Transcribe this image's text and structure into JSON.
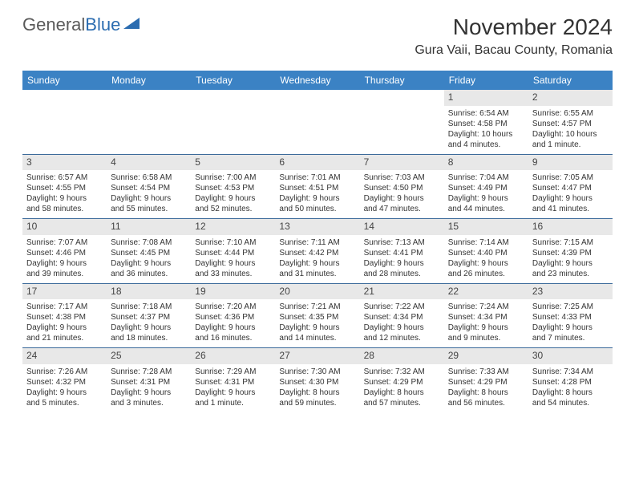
{
  "logo": {
    "text_dark": "General",
    "text_blue": "Blue"
  },
  "title": "November 2024",
  "location": "Gura Vaii, Bacau County, Romania",
  "colors": {
    "header_bg": "#3b82c4",
    "header_text": "#ffffff",
    "border": "#3b6a9a",
    "daynum_bg": "#e8e8e8",
    "text": "#333333",
    "logo_dark": "#5a5a5a",
    "logo_blue": "#2b6cb0"
  },
  "day_headers": [
    "Sunday",
    "Monday",
    "Tuesday",
    "Wednesday",
    "Thursday",
    "Friday",
    "Saturday"
  ],
  "weeks": [
    [
      {
        "empty": true
      },
      {
        "empty": true
      },
      {
        "empty": true
      },
      {
        "empty": true
      },
      {
        "empty": true
      },
      {
        "day": "1",
        "sunrise": "Sunrise: 6:54 AM",
        "sunset": "Sunset: 4:58 PM",
        "daylight1": "Daylight: 10 hours",
        "daylight2": "and 4 minutes."
      },
      {
        "day": "2",
        "sunrise": "Sunrise: 6:55 AM",
        "sunset": "Sunset: 4:57 PM",
        "daylight1": "Daylight: 10 hours",
        "daylight2": "and 1 minute."
      }
    ],
    [
      {
        "day": "3",
        "sunrise": "Sunrise: 6:57 AM",
        "sunset": "Sunset: 4:55 PM",
        "daylight1": "Daylight: 9 hours",
        "daylight2": "and 58 minutes."
      },
      {
        "day": "4",
        "sunrise": "Sunrise: 6:58 AM",
        "sunset": "Sunset: 4:54 PM",
        "daylight1": "Daylight: 9 hours",
        "daylight2": "and 55 minutes."
      },
      {
        "day": "5",
        "sunrise": "Sunrise: 7:00 AM",
        "sunset": "Sunset: 4:53 PM",
        "daylight1": "Daylight: 9 hours",
        "daylight2": "and 52 minutes."
      },
      {
        "day": "6",
        "sunrise": "Sunrise: 7:01 AM",
        "sunset": "Sunset: 4:51 PM",
        "daylight1": "Daylight: 9 hours",
        "daylight2": "and 50 minutes."
      },
      {
        "day": "7",
        "sunrise": "Sunrise: 7:03 AM",
        "sunset": "Sunset: 4:50 PM",
        "daylight1": "Daylight: 9 hours",
        "daylight2": "and 47 minutes."
      },
      {
        "day": "8",
        "sunrise": "Sunrise: 7:04 AM",
        "sunset": "Sunset: 4:49 PM",
        "daylight1": "Daylight: 9 hours",
        "daylight2": "and 44 minutes."
      },
      {
        "day": "9",
        "sunrise": "Sunrise: 7:05 AM",
        "sunset": "Sunset: 4:47 PM",
        "daylight1": "Daylight: 9 hours",
        "daylight2": "and 41 minutes."
      }
    ],
    [
      {
        "day": "10",
        "sunrise": "Sunrise: 7:07 AM",
        "sunset": "Sunset: 4:46 PM",
        "daylight1": "Daylight: 9 hours",
        "daylight2": "and 39 minutes."
      },
      {
        "day": "11",
        "sunrise": "Sunrise: 7:08 AM",
        "sunset": "Sunset: 4:45 PM",
        "daylight1": "Daylight: 9 hours",
        "daylight2": "and 36 minutes."
      },
      {
        "day": "12",
        "sunrise": "Sunrise: 7:10 AM",
        "sunset": "Sunset: 4:44 PM",
        "daylight1": "Daylight: 9 hours",
        "daylight2": "and 33 minutes."
      },
      {
        "day": "13",
        "sunrise": "Sunrise: 7:11 AM",
        "sunset": "Sunset: 4:42 PM",
        "daylight1": "Daylight: 9 hours",
        "daylight2": "and 31 minutes."
      },
      {
        "day": "14",
        "sunrise": "Sunrise: 7:13 AM",
        "sunset": "Sunset: 4:41 PM",
        "daylight1": "Daylight: 9 hours",
        "daylight2": "and 28 minutes."
      },
      {
        "day": "15",
        "sunrise": "Sunrise: 7:14 AM",
        "sunset": "Sunset: 4:40 PM",
        "daylight1": "Daylight: 9 hours",
        "daylight2": "and 26 minutes."
      },
      {
        "day": "16",
        "sunrise": "Sunrise: 7:15 AM",
        "sunset": "Sunset: 4:39 PM",
        "daylight1": "Daylight: 9 hours",
        "daylight2": "and 23 minutes."
      }
    ],
    [
      {
        "day": "17",
        "sunrise": "Sunrise: 7:17 AM",
        "sunset": "Sunset: 4:38 PM",
        "daylight1": "Daylight: 9 hours",
        "daylight2": "and 21 minutes."
      },
      {
        "day": "18",
        "sunrise": "Sunrise: 7:18 AM",
        "sunset": "Sunset: 4:37 PM",
        "daylight1": "Daylight: 9 hours",
        "daylight2": "and 18 minutes."
      },
      {
        "day": "19",
        "sunrise": "Sunrise: 7:20 AM",
        "sunset": "Sunset: 4:36 PM",
        "daylight1": "Daylight: 9 hours",
        "daylight2": "and 16 minutes."
      },
      {
        "day": "20",
        "sunrise": "Sunrise: 7:21 AM",
        "sunset": "Sunset: 4:35 PM",
        "daylight1": "Daylight: 9 hours",
        "daylight2": "and 14 minutes."
      },
      {
        "day": "21",
        "sunrise": "Sunrise: 7:22 AM",
        "sunset": "Sunset: 4:34 PM",
        "daylight1": "Daylight: 9 hours",
        "daylight2": "and 12 minutes."
      },
      {
        "day": "22",
        "sunrise": "Sunrise: 7:24 AM",
        "sunset": "Sunset: 4:34 PM",
        "daylight1": "Daylight: 9 hours",
        "daylight2": "and 9 minutes."
      },
      {
        "day": "23",
        "sunrise": "Sunrise: 7:25 AM",
        "sunset": "Sunset: 4:33 PM",
        "daylight1": "Daylight: 9 hours",
        "daylight2": "and 7 minutes."
      }
    ],
    [
      {
        "day": "24",
        "sunrise": "Sunrise: 7:26 AM",
        "sunset": "Sunset: 4:32 PM",
        "daylight1": "Daylight: 9 hours",
        "daylight2": "and 5 minutes."
      },
      {
        "day": "25",
        "sunrise": "Sunrise: 7:28 AM",
        "sunset": "Sunset: 4:31 PM",
        "daylight1": "Daylight: 9 hours",
        "daylight2": "and 3 minutes."
      },
      {
        "day": "26",
        "sunrise": "Sunrise: 7:29 AM",
        "sunset": "Sunset: 4:31 PM",
        "daylight1": "Daylight: 9 hours",
        "daylight2": "and 1 minute."
      },
      {
        "day": "27",
        "sunrise": "Sunrise: 7:30 AM",
        "sunset": "Sunset: 4:30 PM",
        "daylight1": "Daylight: 8 hours",
        "daylight2": "and 59 minutes."
      },
      {
        "day": "28",
        "sunrise": "Sunrise: 7:32 AM",
        "sunset": "Sunset: 4:29 PM",
        "daylight1": "Daylight: 8 hours",
        "daylight2": "and 57 minutes."
      },
      {
        "day": "29",
        "sunrise": "Sunrise: 7:33 AM",
        "sunset": "Sunset: 4:29 PM",
        "daylight1": "Daylight: 8 hours",
        "daylight2": "and 56 minutes."
      },
      {
        "day": "30",
        "sunrise": "Sunrise: 7:34 AM",
        "sunset": "Sunset: 4:28 PM",
        "daylight1": "Daylight: 8 hours",
        "daylight2": "and 54 minutes."
      }
    ]
  ]
}
